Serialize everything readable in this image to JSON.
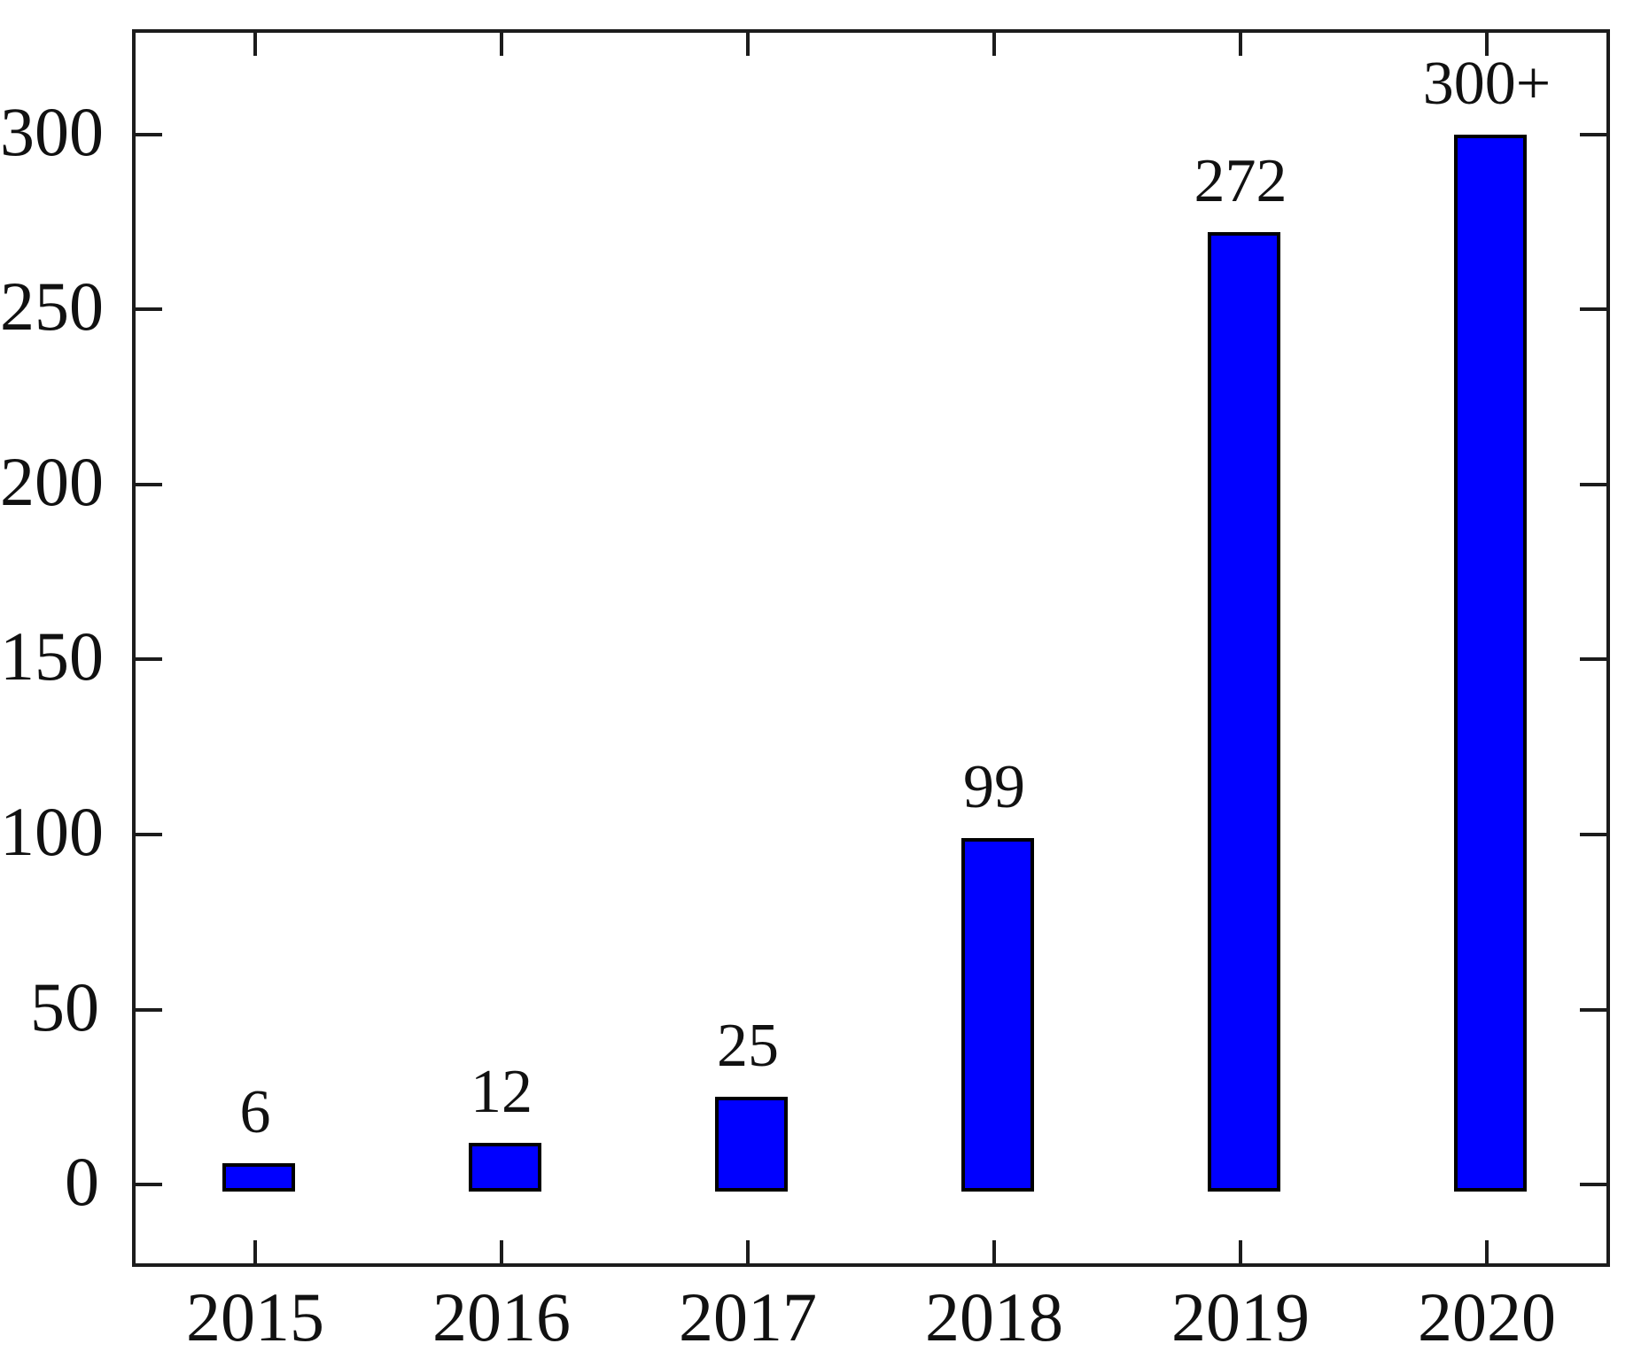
{
  "chart_data": {
    "type": "bar",
    "title": "",
    "xlabel": "",
    "ylabel": "",
    "categories": [
      "2015",
      "2016",
      "2017",
      "2018",
      "2019",
      "2020"
    ],
    "values": [
      6,
      12,
      25,
      99,
      272,
      300
    ],
    "bar_labels": [
      "6",
      "12",
      "25",
      "99",
      "272",
      "300+"
    ],
    "yticks": [
      0,
      50,
      100,
      150,
      200,
      250,
      300
    ],
    "ytick_labels": [
      "0",
      "50",
      "100",
      "150",
      "200",
      "250",
      "300"
    ],
    "ylim": [
      -23.5,
      330
    ],
    "grid": false,
    "legend": false,
    "tick_style": "inward-mirrored-all-sides",
    "colors": {
      "bar_fill": "#0000FF",
      "bar_border": "#000000",
      "axis": "#1c1c1c",
      "text": "#111111",
      "background": "#FFFFFF"
    }
  }
}
